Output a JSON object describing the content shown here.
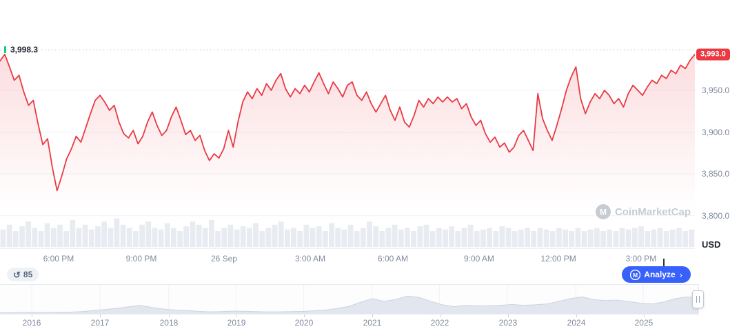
{
  "colors": {
    "line": "#ea3943",
    "accent_blue": "#3861fb",
    "axis_text": "#808a9d",
    "dark_text": "#222531",
    "grid": "#eff2f5",
    "volume": "#e8ebf1",
    "nav_fill": "#e2e6ee",
    "nav_stroke": "#ccd3df",
    "open_marker_green": "#16c784",
    "dotted_line": "#b9c1cf",
    "watermark_gray": "#c6cbd4"
  },
  "watermark": {
    "label": "CoinMarketCap"
  },
  "controls": {
    "history_count": "85",
    "history_icon": "↺",
    "analyze_label": "Analyze",
    "chevron": "›"
  },
  "chart_data": {
    "type": "line",
    "title": "",
    "ylabel": "USD",
    "unit_label": "USD",
    "ylim": [
      3761,
      4058
    ],
    "gridlines": [
      3800,
      3850,
      3900,
      3950
    ],
    "y_ticks": [
      {
        "label": "3,950.0",
        "value": 3950
      },
      {
        "label": "3,900.0",
        "value": 3900
      },
      {
        "label": "3,850.0",
        "value": 3850
      },
      {
        "label": "3,800.0",
        "value": 3800
      }
    ],
    "open_price": 3998.3,
    "open_price_label": "3,998.3",
    "last_price": 3993.0,
    "last_price_label": "3,993.0",
    "x_ticks": [
      {
        "label": "6:00 PM",
        "pos": 0.0843
      },
      {
        "label": "9:00 PM",
        "pos": 0.2034
      },
      {
        "label": "26 Sep",
        "pos": 0.3224
      },
      {
        "label": "3:00 AM",
        "pos": 0.4464
      },
      {
        "label": "6:00 AM",
        "pos": 0.5655
      },
      {
        "label": "9:00 AM",
        "pos": 0.6894
      },
      {
        "label": "12:00 PM",
        "pos": 0.8036
      },
      {
        "label": "3:00 PM",
        "pos": 0.9226
      }
    ],
    "series": [
      3985,
      3993,
      3978,
      3962,
      3968,
      3948,
      3932,
      3938,
      3910,
      3885,
      3892,
      3858,
      3830,
      3848,
      3868,
      3880,
      3895,
      3888,
      3905,
      3922,
      3938,
      3944,
      3936,
      3926,
      3932,
      3912,
      3898,
      3893,
      3902,
      3886,
      3895,
      3912,
      3924,
      3908,
      3896,
      3902,
      3918,
      3930,
      3914,
      3897,
      3902,
      3890,
      3896,
      3878,
      3866,
      3874,
      3869,
      3880,
      3902,
      3882,
      3912,
      3936,
      3948,
      3940,
      3952,
      3944,
      3958,
      3950,
      3962,
      3970,
      3952,
      3942,
      3952,
      3946,
      3956,
      3948,
      3960,
      3971,
      3958,
      3946,
      3960,
      3952,
      3942,
      3956,
      3960,
      3944,
      3938,
      3948,
      3934,
      3924,
      3934,
      3944,
      3926,
      3914,
      3930,
      3912,
      3906,
      3920,
      3938,
      3930,
      3940,
      3934,
      3942,
      3936,
      3942,
      3936,
      3940,
      3928,
      3934,
      3918,
      3908,
      3914,
      3898,
      3888,
      3894,
      3882,
      3887,
      3876,
      3882,
      3896,
      3902,
      3890,
      3878,
      3946,
      3916,
      3902,
      3890,
      3908,
      3928,
      3950,
      3966,
      3978,
      3940,
      3922,
      3936,
      3946,
      3940,
      3950,
      3944,
      3934,
      3940,
      3930,
      3946,
      3956,
      3950,
      3944,
      3954,
      3962,
      3958,
      3968,
      3964,
      3974,
      3970,
      3980,
      3976,
      3986,
      3993
    ],
    "volume": [
      0.55,
      0.7,
      0.5,
      0.65,
      0.8,
      0.6,
      0.5,
      0.75,
      0.6,
      0.7,
      0.5,
      0.85,
      0.6,
      0.7,
      0.55,
      0.65,
      0.8,
      0.6,
      0.9,
      0.7,
      0.6,
      0.5,
      0.7,
      0.8,
      0.6,
      0.55,
      0.75,
      0.6,
      0.5,
      0.65,
      0.8,
      0.7,
      0.6,
      0.85,
      0.5,
      0.6,
      0.7,
      0.55,
      0.65,
      0.6,
      0.75,
      0.5,
      0.6,
      0.7,
      0.8,
      0.55,
      0.6,
      0.5,
      0.7,
      0.6,
      0.65,
      0.5,
      0.75,
      0.6,
      0.55,
      0.7,
      0.5,
      0.6,
      0.8,
      0.65,
      0.5,
      0.6,
      0.7,
      0.55,
      0.6,
      0.5,
      0.65,
      0.7,
      0.5,
      0.6,
      0.55,
      0.65,
      0.5,
      0.6,
      0.7,
      0.5,
      0.55,
      0.6,
      0.5,
      0.65,
      0.6,
      0.5,
      0.55,
      0.6,
      0.5,
      0.6,
      0.55,
      0.5,
      0.6,
      0.55,
      0.5,
      0.6,
      0.5,
      0.55,
      0.6,
      0.5,
      0.55,
      0.5,
      0.6,
      0.55,
      0.6,
      0.65,
      0.5,
      0.55,
      0.6,
      0.5,
      0.55,
      0.6,
      0.5,
      0.55
    ],
    "navigator": {
      "values": [
        0.02,
        0.02,
        0.03,
        0.03,
        0.03,
        0.04,
        0.04,
        0.06,
        0.1,
        0.14,
        0.18,
        0.24,
        0.3,
        0.22,
        0.16,
        0.12,
        0.1,
        0.07,
        0.05,
        0.06,
        0.08,
        0.07,
        0.06,
        0.05,
        0.05,
        0.06,
        0.07,
        0.09,
        0.12,
        0.18,
        0.26,
        0.42,
        0.55,
        0.45,
        0.52,
        0.65,
        0.6,
        0.45,
        0.32,
        0.25,
        0.3,
        0.28,
        0.28,
        0.3,
        0.33,
        0.3,
        0.32,
        0.35,
        0.45,
        0.55,
        0.62,
        0.52,
        0.48,
        0.5,
        0.44,
        0.38,
        0.35,
        0.42,
        0.55,
        0.62,
        0.6
      ],
      "years": [
        {
          "label": "2016",
          "pos": 0.0454
        },
        {
          "label": "2017",
          "pos": 0.143
        },
        {
          "label": "2018",
          "pos": 0.2416
        },
        {
          "label": "2019",
          "pos": 0.3383
        },
        {
          "label": "2020",
          "pos": 0.4349
        },
        {
          "label": "2021",
          "pos": 0.5325
        },
        {
          "label": "2022",
          "pos": 0.6292
        },
        {
          "label": "2023",
          "pos": 0.7268
        },
        {
          "label": "2024",
          "pos": 0.8245
        },
        {
          "label": "2025",
          "pos": 0.9211
        }
      ]
    }
  }
}
